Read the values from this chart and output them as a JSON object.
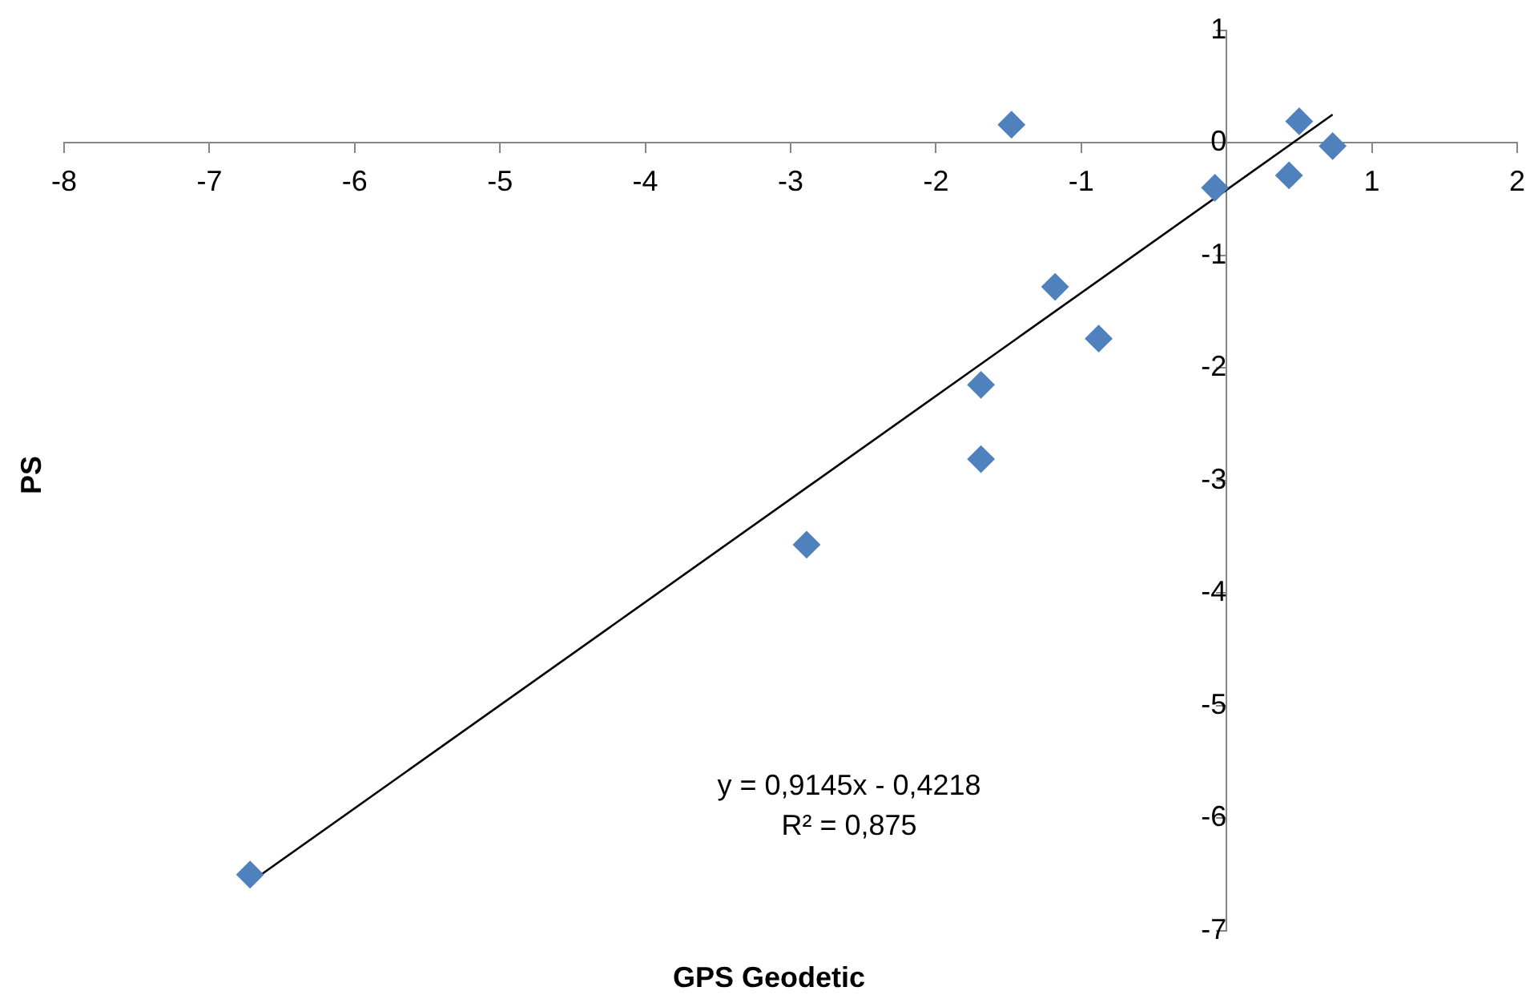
{
  "chart_data": {
    "type": "scatter",
    "xlabel": "GPS Geodetic",
    "ylabel": "PS",
    "xlim": [
      -8,
      2
    ],
    "xticks": [
      -8,
      -7,
      -6,
      -5,
      -4,
      -3,
      -2,
      -1,
      {
        "value": 0,
        "label": null
      },
      1,
      2
    ],
    "ylim": [
      -7,
      1
    ],
    "yticks": [
      -7,
      -6,
      -5,
      -4,
      -3,
      -2,
      -1,
      0,
      1
    ],
    "grid": false,
    "legend": false,
    "marker": "diamond",
    "series": [
      {
        "type": "scatter",
        "color": "#4f81bd",
        "x": [
          -6.72,
          -2.89,
          -1.69,
          -1.69,
          -1.18,
          -0.88,
          -1.48,
          -0.08,
          0.43,
          0.5,
          0.73
        ],
        "values": [
          -6.5,
          -3.57,
          -2.81,
          -2.15,
          -1.28,
          -1.74,
          0.16,
          -0.4,
          -0.29,
          0.19,
          -0.03
        ]
      },
      {
        "type": "line",
        "color": "#000000",
        "marker": "none",
        "x": [
          -6.72,
          0.73
        ],
        "values": [
          -6.57,
          0.25
        ]
      }
    ],
    "annotations": [
      "y = 0,9145x - 0,4218",
      "R² = 0,875"
    ]
  }
}
